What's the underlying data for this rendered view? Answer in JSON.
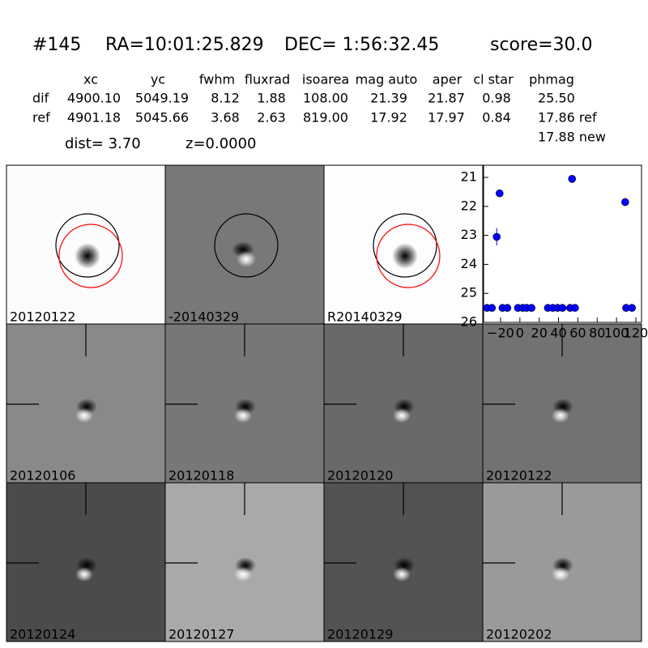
{
  "header": {
    "id": "#145",
    "ra": "RA=10:01:25.829",
    "dec": "DEC= 1:56:32.45",
    "score": "score=30.0"
  },
  "table": {
    "columns": [
      "xc",
      "yc",
      "fwhm",
      "fluxrad",
      "isoarea",
      "mag auto",
      "aper",
      "cl star",
      "phmag"
    ],
    "rows": [
      [
        "dif",
        "4900.10",
        "5049.19",
        "8.12",
        "1.88",
        "108.00",
        "21.39",
        "21.87",
        "0.98",
        "25.50"
      ],
      [
        "ref",
        "4901.18",
        "5045.66",
        "3.68",
        "2.63",
        "819.00",
        "17.92",
        "17.97",
        "0.84",
        "17.86 ref"
      ]
    ],
    "extra": "17.88 new"
  },
  "dist": "dist=  3.70",
  "z": "z=0.0000",
  "top_panels": [
    {
      "label": "20120122",
      "background": "#fcfcfc"
    },
    {
      "label": "-20140329",
      "background": "#787878"
    },
    {
      "label": "R20140329",
      "background": "#fdfdfd"
    }
  ],
  "cutouts": [
    {
      "label": "20120106",
      "background": "#898989"
    },
    {
      "label": "20120118",
      "background": "#777777"
    },
    {
      "label": "20120120",
      "background": "#696969"
    },
    {
      "label": "20120122",
      "background": "#727272",
      "label_color": "#ff0000"
    },
    {
      "label": "20120124",
      "background": "#4b4b4b"
    },
    {
      "label": "20120127",
      "background": "#a9a9a9"
    },
    {
      "label": "20120129",
      "background": "#535353"
    },
    {
      "label": "20120202",
      "background": "#9a9a9a"
    }
  ],
  "chart_data": {
    "type": "scatter",
    "color": "#0000ff",
    "x": [
      -34,
      -29,
      -24,
      -21,
      -18,
      -13,
      -2,
      3,
      7,
      12,
      29,
      34,
      39,
      44,
      52,
      54,
      57,
      109,
      110,
      116
    ],
    "values": [
      25.5,
      25.5,
      23.05,
      21.55,
      25.5,
      25.5,
      25.5,
      25.5,
      25.5,
      25.5,
      25.5,
      25.5,
      25.5,
      25.5,
      25.5,
      21.05,
      25.5,
      21.85,
      25.5,
      25.5
    ],
    "errors": [
      null,
      null,
      0.3,
      null,
      null,
      null,
      null,
      null,
      null,
      null,
      null,
      null,
      null,
      null,
      null,
      null,
      null,
      null,
      null,
      null
    ],
    "xlim": [
      -37.6,
      125.9
    ],
    "ylim": [
      20.58,
      26
    ],
    "y_inverted": true,
    "xticks": [
      {
        "value": -20,
        "label": "−20"
      },
      0,
      20,
      40,
      60,
      80,
      100,
      120
    ],
    "yticks": [
      21,
      22,
      23,
      24,
      25,
      26
    ]
  }
}
